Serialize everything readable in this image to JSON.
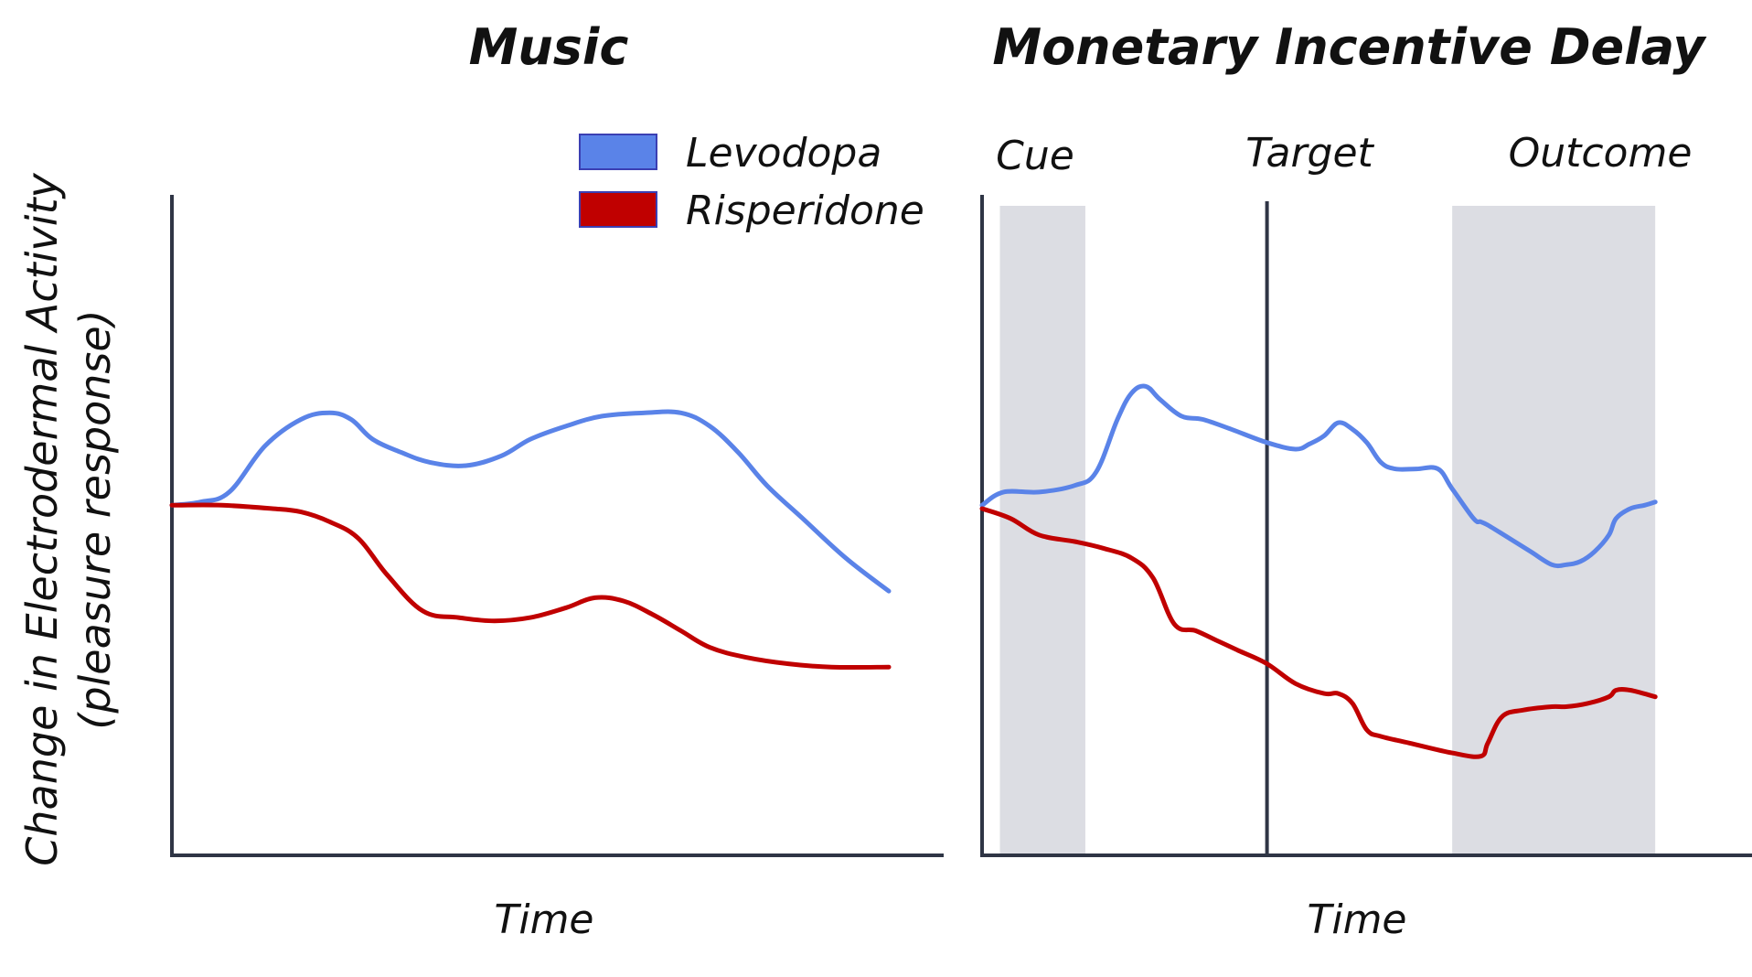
{
  "chart_data": [
    {
      "type": "line",
      "title": "Music",
      "xlabel": "Time",
      "ylabel": "Change in Electrodermal Activity (pleasure response)",
      "ylabel_lines": [
        "Change in Electrodermal Activity",
        "(pleasure response)"
      ],
      "xlim": [
        0,
        100
      ],
      "ylim": [
        0,
        100
      ],
      "grid": false,
      "legend": "top-right",
      "series": [
        {
          "name": "Levodopa",
          "color": "#5a83e8",
          "x": [
            0,
            4,
            8,
            13,
            18,
            22,
            25,
            28,
            32,
            36,
            41,
            46,
            50,
            55,
            60,
            66,
            71,
            75,
            79,
            83,
            88,
            94,
            100
          ],
          "y": [
            53,
            53.5,
            55,
            62,
            66,
            67,
            66,
            63,
            61,
            59.5,
            59,
            60.5,
            63,
            65,
            66.5,
            67,
            67,
            65,
            61,
            56,
            51,
            45,
            40
          ]
        },
        {
          "name": "Risperidone",
          "color": "#c00000",
          "x": [
            0,
            7,
            14,
            18,
            22,
            26,
            30,
            35,
            40,
            45,
            50,
            55,
            59,
            63,
            67,
            71,
            75,
            80,
            86,
            92,
            100
          ],
          "y": [
            53,
            53,
            52.5,
            52,
            50.5,
            48,
            42.5,
            37,
            36,
            35.5,
            36,
            37.5,
            39,
            38.5,
            36.5,
            34,
            31.5,
            30,
            29,
            28.5,
            28.5
          ]
        }
      ]
    },
    {
      "type": "line",
      "title": "Monetary Incentive Delay",
      "xlabel": "Time",
      "xlim": [
        0,
        100
      ],
      "ylim": [
        0,
        100
      ],
      "grid": false,
      "phases": [
        {
          "label": "Cue",
          "x_range": [
            2.5,
            14.5
          ],
          "shaded": true
        },
        {
          "label": "Target",
          "x": 40,
          "marker": "vertical-line"
        },
        {
          "label": "Outcome",
          "x_range": [
            66,
            94.5
          ],
          "shaded": true
        }
      ],
      "series": [
        {
          "name": "Levodopa",
          "color": "#5a83e8",
          "x": [
            0,
            3,
            8,
            13,
            16,
            19,
            21,
            23,
            25,
            28,
            31,
            35,
            40,
            44,
            46,
            48,
            50,
            52,
            54,
            56,
            58,
            61,
            64,
            66,
            69,
            70,
            71,
            74,
            77,
            80,
            82,
            84,
            86,
            88,
            89,
            91,
            93,
            94.5
          ],
          "y": [
            53,
            55,
            55,
            56,
            58,
            66,
            70,
            71,
            69,
            66.5,
            66,
            64.5,
            62.5,
            61.5,
            62.3,
            63.5,
            65.5,
            64.5,
            62.5,
            59.5,
            58.5,
            58.5,
            58.5,
            55.5,
            51,
            50.5,
            50,
            48,
            46,
            44,
            44,
            44.5,
            46,
            48.5,
            51,
            52.5,
            53,
            53.5
          ]
        },
        {
          "name": "Risperidone",
          "color": "#c00000",
          "x": [
            0,
            4,
            8,
            13,
            17,
            21,
            24,
            27,
            30,
            33,
            36,
            40,
            44,
            48,
            50,
            52,
            54,
            56,
            60,
            66,
            70,
            71,
            73,
            76,
            80,
            82,
            85,
            88,
            89,
            91,
            94.5
          ],
          "y": [
            52.5,
            51,
            48.5,
            47.5,
            46.5,
            45,
            42,
            35,
            34,
            32.5,
            31,
            29,
            26,
            24.5,
            24.5,
            23,
            19,
            18,
            17,
            15.5,
            15,
            17,
            21,
            22,
            22.5,
            22.5,
            23,
            24,
            25,
            25,
            24
          ]
        }
      ]
    }
  ]
}
